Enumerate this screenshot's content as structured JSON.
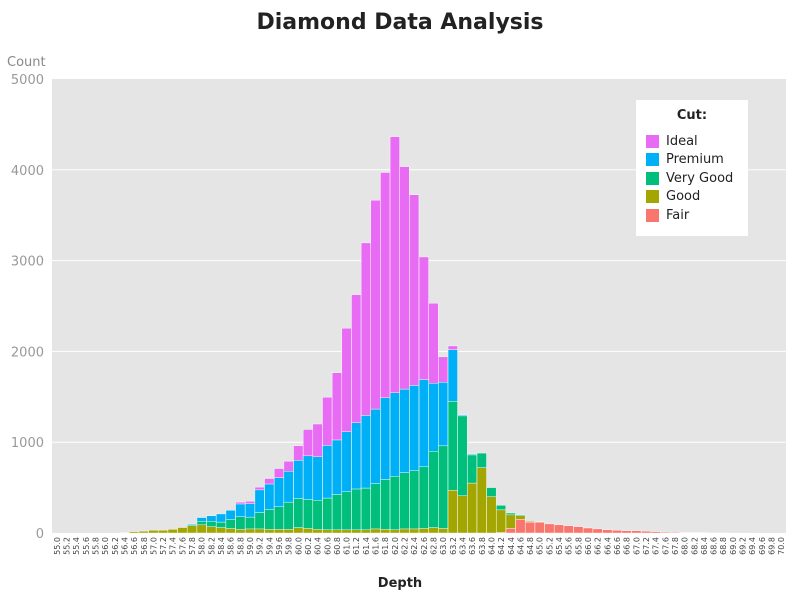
{
  "chart_data": {
    "type": "bar",
    "stacked": true,
    "title": "Diamond Data Analysis",
    "xlabel": "Depth",
    "ylabel": "Count",
    "ylim": [
      0,
      5000
    ],
    "yticks": [
      0,
      1000,
      2000,
      3000,
      4000,
      5000
    ],
    "grid": true,
    "legend": {
      "title": "Cut:",
      "placement": "top-right"
    },
    "categories": [
      "55.0",
      "55.2",
      "55.4",
      "55.6",
      "55.8",
      "56.0",
      "56.2",
      "56.4",
      "56.6",
      "56.8",
      "57.0",
      "57.2",
      "57.4",
      "57.6",
      "57.8",
      "58.0",
      "58.2",
      "58.4",
      "58.6",
      "58.8",
      "59.0",
      "59.2",
      "59.4",
      "59.6",
      "59.8",
      "60.0",
      "60.2",
      "60.4",
      "60.6",
      "60.8",
      "61.0",
      "61.2",
      "61.4",
      "61.6",
      "61.8",
      "62.0",
      "62.2",
      "62.4",
      "62.6",
      "62.8",
      "63.0",
      "63.2",
      "63.4",
      "63.6",
      "63.8",
      "64.0",
      "64.2",
      "64.4",
      "64.6",
      "64.8",
      "65.0",
      "65.2",
      "65.4",
      "65.6",
      "65.8",
      "66.0",
      "66.2",
      "66.4",
      "66.6",
      "66.8",
      "67.0",
      "67.2",
      "67.4",
      "67.6",
      "67.8",
      "68.0",
      "68.2",
      "68.4",
      "68.6",
      "68.8",
      "69.0",
      "69.2",
      "69.4",
      "69.6",
      "69.8",
      "70.0"
    ],
    "series": [
      {
        "name": "Fair",
        "color": "#F8766D",
        "values": [
          0,
          0,
          0,
          0,
          0,
          0,
          0,
          0,
          0,
          0,
          0,
          0,
          0,
          0,
          0,
          0,
          0,
          0,
          0,
          0,
          0,
          0,
          0,
          0,
          0,
          0,
          0,
          0,
          0,
          0,
          0,
          0,
          0,
          0,
          0,
          0,
          0,
          0,
          0,
          0,
          0,
          0,
          0,
          0,
          0,
          0,
          5,
          50,
          150,
          120,
          120,
          100,
          90,
          80,
          70,
          55,
          45,
          35,
          30,
          25,
          25,
          20,
          15,
          10,
          8,
          5,
          4,
          3,
          2,
          2,
          1,
          1,
          1,
          0,
          0,
          0
        ]
      },
      {
        "name": "Good",
        "color": "#A3A500",
        "values": [
          0,
          0,
          0,
          0,
          0,
          0,
          0,
          5,
          15,
          20,
          30,
          30,
          40,
          60,
          80,
          90,
          70,
          60,
          50,
          40,
          45,
          45,
          40,
          40,
          40,
          60,
          50,
          40,
          35,
          35,
          35,
          35,
          35,
          45,
          40,
          35,
          45,
          45,
          50,
          60,
          50,
          470,
          410,
          550,
          720,
          400,
          250,
          150,
          40,
          10,
          5,
          0,
          0,
          0,
          0,
          0,
          0,
          0,
          0,
          0,
          0,
          0,
          0,
          0,
          0,
          0,
          0,
          0,
          0,
          0,
          0,
          0,
          0,
          0,
          0,
          0
        ]
      },
      {
        "name": "Very Good",
        "color": "#00BF7D",
        "values": [
          0,
          0,
          0,
          0,
          0,
          0,
          0,
          0,
          0,
          0,
          0,
          0,
          0,
          0,
          10,
          40,
          60,
          60,
          100,
          140,
          130,
          180,
          220,
          250,
          300,
          320,
          320,
          320,
          350,
          390,
          420,
          450,
          460,
          500,
          550,
          590,
          620,
          640,
          680,
          840,
          910,
          980,
          880,
          310,
          160,
          100,
          50,
          20,
          10,
          0,
          0,
          0,
          0,
          0,
          0,
          0,
          0,
          0,
          0,
          0,
          0,
          0,
          0,
          0,
          0,
          0,
          0,
          0,
          0,
          0,
          0,
          0,
          0,
          0,
          0,
          0
        ]
      },
      {
        "name": "Premium",
        "color": "#00B0F6",
        "values": [
          0,
          0,
          0,
          0,
          0,
          0,
          0,
          0,
          0,
          0,
          0,
          0,
          0,
          0,
          10,
          40,
          60,
          90,
          100,
          140,
          150,
          250,
          280,
          320,
          340,
          420,
          480,
          480,
          580,
          600,
          660,
          730,
          800,
          820,
          900,
          920,
          920,
          940,
          960,
          750,
          700,
          570,
          10,
          10,
          0,
          0,
          0,
          0,
          0,
          0,
          0,
          0,
          0,
          0,
          0,
          0,
          0,
          0,
          0,
          0,
          0,
          0,
          0,
          0,
          0,
          0,
          0,
          0,
          0,
          0,
          0,
          0,
          0,
          0,
          0,
          0
        ]
      },
      {
        "name": "Ideal",
        "color": "#E76BF3",
        "values": [
          0,
          0,
          0,
          0,
          0,
          0,
          0,
          0,
          0,
          0,
          0,
          0,
          0,
          0,
          0,
          0,
          0,
          0,
          0,
          20,
          25,
          30,
          60,
          100,
          110,
          160,
          290,
          360,
          530,
          740,
          1140,
          1410,
          1900,
          2300,
          2480,
          2820,
          2450,
          2100,
          1350,
          880,
          280,
          40,
          0,
          0,
          0,
          0,
          0,
          0,
          0,
          0,
          0,
          0,
          0,
          0,
          0,
          0,
          0,
          0,
          0,
          0,
          0,
          0,
          0,
          0,
          0,
          0,
          0,
          0,
          0,
          0,
          0,
          0,
          0,
          0,
          0,
          0
        ]
      }
    ]
  }
}
